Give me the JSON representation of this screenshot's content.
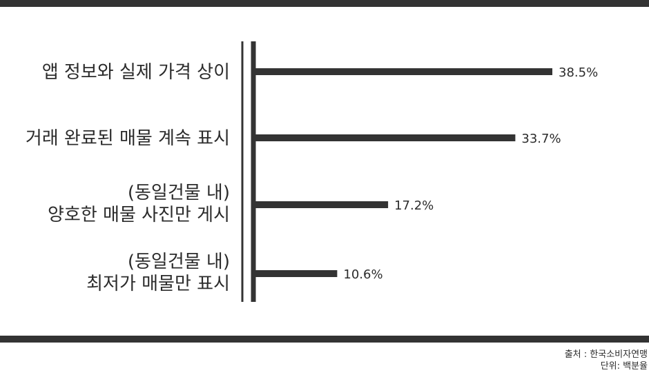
{
  "chart_data": {
    "type": "bar",
    "orientation": "horizontal",
    "categories": [
      [
        "앱 정보와 실제 가격 상이"
      ],
      [
        "거래 완료된 매물 계속 표시"
      ],
      [
        "(동일건물 내)",
        "양호한 매물 사진만 게시"
      ],
      [
        "(동일건물 내)",
        "최저가 매물만 표시"
      ]
    ],
    "values": [
      38.5,
      33.7,
      17.2,
      10.6
    ],
    "value_labels": [
      "38.5%",
      "33.7%",
      "17.2%",
      "10.6%"
    ],
    "xlim": [
      0,
      40
    ],
    "grid": false,
    "bar_color": "#333333"
  },
  "footer": {
    "source": "출처 : 한국소비자연맹",
    "unit": "단위: 백분율"
  }
}
